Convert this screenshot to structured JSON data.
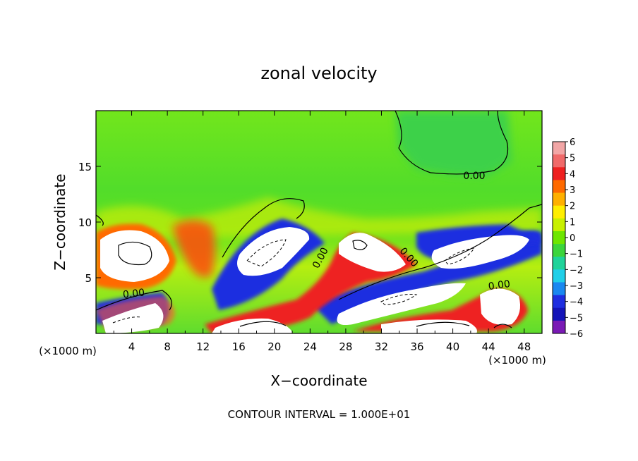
{
  "chart_data": {
    "type": "heatmap",
    "title": "zonal velocity",
    "xlabel": "X−coordinate",
    "ylabel": "Z−coordinate",
    "x_unit": "(×1000 m)",
    "y_unit": "(×1000 m)",
    "xlim": [
      0,
      50
    ],
    "ylim": [
      0,
      20
    ],
    "x_ticks": [
      4,
      8,
      12,
      16,
      20,
      24,
      28,
      32,
      36,
      40,
      44,
      48
    ],
    "y_ticks": [
      5,
      10,
      15
    ],
    "colorbar": {
      "labels": [
        "6",
        "5",
        "4",
        "3",
        "2",
        "1",
        "0",
        "−1",
        "−2",
        "−3",
        "−4",
        "−5",
        "−6"
      ],
      "range": [
        -6,
        6
      ],
      "colors": [
        "#f2a6a6",
        "#f06a6a",
        "#ee2020",
        "#ff6a00",
        "#ffb000",
        "#ffee00",
        "#c8f000",
        "#6ee600",
        "#3cd53c",
        "#1fd39a",
        "#20cfe8",
        "#1a88f0",
        "#1f2ee0",
        "#1414b8",
        "#7a1ab5"
      ]
    },
    "contour_labels": [
      "0.00",
      "0.00",
      "0.00",
      "0.00",
      "0.00"
    ],
    "footer": "CONTOUR INTERVAL = 1.000E+01",
    "grid": false
  }
}
